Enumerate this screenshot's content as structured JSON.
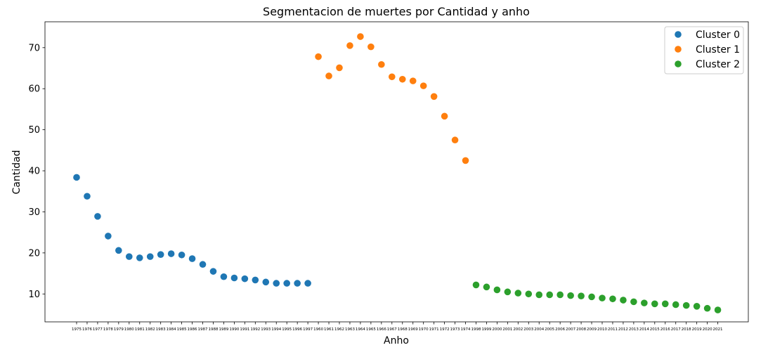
{
  "chart_data": {
    "type": "scatter",
    "title": "Segmentacion de muertes por Cantidad y anho",
    "xlabel": "Anho",
    "ylabel": "Cantidad",
    "ylim": [
      3.2,
      76.3
    ],
    "yticks": [
      10,
      20,
      30,
      40,
      50,
      60,
      70
    ],
    "x_categories": [
      "1975",
      "1976",
      "1977",
      "1978",
      "1979",
      "1980",
      "1981",
      "1982",
      "1983",
      "1984",
      "1985",
      "1986",
      "1987",
      "1988",
      "1989",
      "1990",
      "1991",
      "1992",
      "1993",
      "1994",
      "1995",
      "1996",
      "1997",
      "1960",
      "1961",
      "1962",
      "1963",
      "1964",
      "1965",
      "1966",
      "1967",
      "1968",
      "1969",
      "1970",
      "1971",
      "1972",
      "1973",
      "1974",
      "1998",
      "1999",
      "2000",
      "2001",
      "2002",
      "2003",
      "2004",
      "2005",
      "2006",
      "2007",
      "2008",
      "2009",
      "2010",
      "2011",
      "2012",
      "2013",
      "2014",
      "2015",
      "2016",
      "2017",
      "2018",
      "2019",
      "2020",
      "2021"
    ],
    "grid": false,
    "legend_position": "top-right",
    "series": [
      {
        "name": "Cluster 0",
        "color": "#1f77b4",
        "x": [
          "1975",
          "1976",
          "1977",
          "1978",
          "1979",
          "1980",
          "1981",
          "1982",
          "1983",
          "1984",
          "1985",
          "1986",
          "1987",
          "1988",
          "1989",
          "1990",
          "1991",
          "1992",
          "1993",
          "1994",
          "1995",
          "1996",
          "1997"
        ],
        "values": [
          38.4,
          33.8,
          28.9,
          24.1,
          20.6,
          19.1,
          18.8,
          19.1,
          19.6,
          19.8,
          19.5,
          18.6,
          17.2,
          15.5,
          14.2,
          13.9,
          13.7,
          13.4,
          12.9,
          12.6,
          12.6,
          12.6,
          12.6
        ]
      },
      {
        "name": "Cluster 1",
        "color": "#ff7f0e",
        "x": [
          "1960",
          "1961",
          "1962",
          "1963",
          "1964",
          "1965",
          "1966",
          "1967",
          "1968",
          "1969",
          "1970",
          "1971",
          "1972",
          "1973",
          "1974"
        ],
        "values": [
          67.8,
          63.1,
          65.1,
          70.5,
          72.7,
          70.2,
          65.9,
          62.9,
          62.3,
          61.9,
          60.7,
          58.1,
          53.3,
          47.5,
          42.5
        ]
      },
      {
        "name": "Cluster 2",
        "color": "#2ca02c",
        "x": [
          "1998",
          "1999",
          "2000",
          "2001",
          "2002",
          "2003",
          "2004",
          "2005",
          "2006",
          "2007",
          "2008",
          "2009",
          "2010",
          "2011",
          "2012",
          "2013",
          "2014",
          "2015",
          "2016",
          "2017",
          "2018",
          "2019",
          "2020",
          "2021"
        ],
        "values": [
          12.2,
          11.7,
          11.0,
          10.5,
          10.2,
          10.0,
          9.8,
          9.8,
          9.8,
          9.6,
          9.5,
          9.3,
          9.0,
          8.8,
          8.5,
          8.1,
          7.8,
          7.6,
          7.6,
          7.4,
          7.2,
          7.0,
          6.5,
          6.1
        ]
      }
    ]
  }
}
